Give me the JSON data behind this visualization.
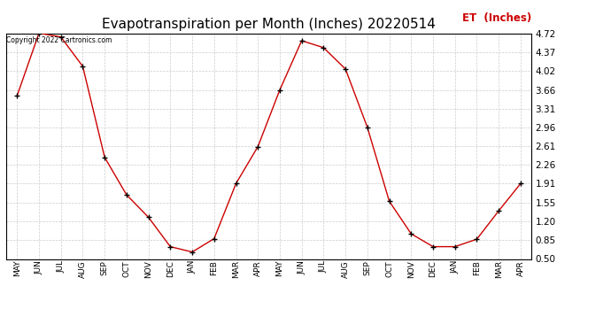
{
  "title": "Evapotranspiration per Month (Inches) 20220514",
  "legend_label": "ET  (Inches)",
  "copyright": "Copyright 2022 Cartronics.com",
  "months": [
    "MAY",
    "JUN",
    "JUL",
    "AUG",
    "SEP",
    "OCT",
    "NOV",
    "DEC",
    "JAN",
    "FEB",
    "MAR",
    "APR",
    "MAY",
    "JUN",
    "JUL",
    "AUG",
    "SEP",
    "OCT",
    "NOV",
    "DEC",
    "JAN",
    "FEB",
    "MAR",
    "APR"
  ],
  "values": [
    3.55,
    4.72,
    4.65,
    4.1,
    2.4,
    1.7,
    1.28,
    0.73,
    0.63,
    0.88,
    1.91,
    2.6,
    3.66,
    4.58,
    4.45,
    4.05,
    2.96,
    1.58,
    0.97,
    0.73,
    0.73,
    0.87,
    1.4,
    1.91
  ],
  "ylim": [
    0.5,
    4.72
  ],
  "yticks": [
    0.5,
    0.85,
    1.2,
    1.55,
    1.91,
    2.26,
    2.61,
    2.96,
    3.31,
    3.66,
    4.02,
    4.37,
    4.72
  ],
  "line_color": "#cc0000",
  "marker_color": "#000000",
  "title_fontsize": 11,
  "legend_color": "#cc0000",
  "copyright_color": "#000000",
  "background_color": "#ffffff",
  "grid_color": "#cccccc"
}
